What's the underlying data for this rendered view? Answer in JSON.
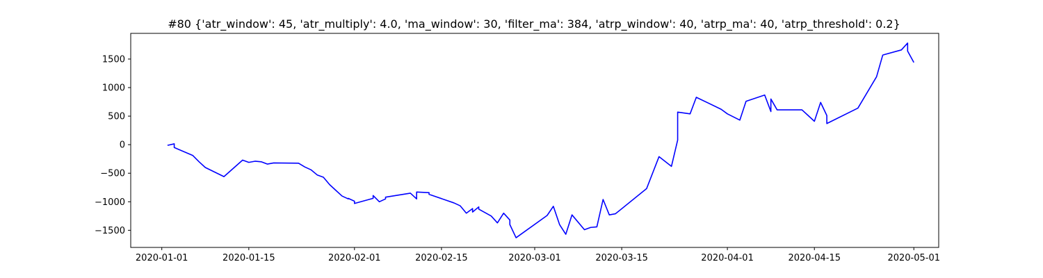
{
  "chart_data": {
    "type": "line",
    "title": "#80 {'atr_window': 45, 'atr_multiply': 4.0, 'ma_window': 30, 'filter_ma': 384, 'atrp_window': 40, 'atrp_ma': 40, 'atrp_threshold': 0.2}",
    "xlabel": "",
    "ylabel": "",
    "xlim": [
      "2019-12-27",
      "2020-05-05"
    ],
    "ylim": [
      -1800,
      1950
    ],
    "grid": false,
    "legend": "none",
    "x_ticks": [
      "2020-01-01",
      "2020-01-15",
      "2020-02-01",
      "2020-02-15",
      "2020-03-01",
      "2020-03-15",
      "2020-04-01",
      "2020-04-15",
      "2020-05-01"
    ],
    "y_ticks": [
      -1500,
      -1000,
      -500,
      0,
      500,
      1000,
      1500
    ],
    "line_color": "#0000ff",
    "series": [
      {
        "x": [
          "2020-01-02",
          "2020-01-02",
          "2020-01-03",
          "2020-01-03",
          "2020-01-06",
          "2020-01-07",
          "2020-01-08",
          "2020-01-11",
          "2020-01-14",
          "2020-01-15",
          "2020-01-16",
          "2020-01-17",
          "2020-01-18",
          "2020-01-19",
          "2020-01-23",
          "2020-01-24",
          "2020-01-25",
          "2020-01-26",
          "2020-01-27",
          "2020-01-28",
          "2020-01-29",
          "2020-01-30",
          "2020-01-31",
          "2020-01-31",
          "2020-02-01",
          "2020-02-01",
          "2020-02-04",
          "2020-02-04",
          "2020-02-05",
          "2020-02-06",
          "2020-02-06",
          "2020-02-10",
          "2020-02-11",
          "2020-02-11",
          "2020-02-13",
          "2020-02-13",
          "2020-02-17",
          "2020-02-18",
          "2020-02-19",
          "2020-02-20",
          "2020-02-20",
          "2020-02-21",
          "2020-02-21",
          "2020-02-23",
          "2020-02-24",
          "2020-02-25",
          "2020-02-26",
          "2020-02-26",
          "2020-02-27",
          "2020-03-03",
          "2020-03-04",
          "2020-03-05",
          "2020-03-06",
          "2020-03-07",
          "2020-03-09",
          "2020-03-10",
          "2020-03-11",
          "2020-03-12",
          "2020-03-13",
          "2020-03-14",
          "2020-03-19",
          "2020-03-21",
          "2020-03-23",
          "2020-03-24",
          "2020-03-24",
          "2020-03-26",
          "2020-03-27",
          "2020-03-31",
          "2020-04-01",
          "2020-04-03",
          "2020-04-04",
          "2020-04-07",
          "2020-04-08",
          "2020-04-08",
          "2020-04-09",
          "2020-04-13",
          "2020-04-14",
          "2020-04-15",
          "2020-04-16",
          "2020-04-17",
          "2020-04-17",
          "2020-04-22",
          "2020-04-25",
          "2020-04-26",
          "2020-04-29",
          "2020-04-30",
          "2020-04-30",
          "2020-05-01"
        ],
        "values": [
          0,
          -10,
          15,
          -50,
          -190,
          -300,
          -400,
          -560,
          -270,
          -310,
          -290,
          -300,
          -340,
          -320,
          -325,
          -390,
          -440,
          -530,
          -570,
          -700,
          -800,
          -900,
          -950,
          -940,
          -990,
          -1030,
          -940,
          -890,
          -1000,
          -950,
          -920,
          -850,
          -950,
          -830,
          -840,
          -870,
          -1020,
          -1070,
          -1200,
          -1120,
          -1180,
          -1090,
          -1130,
          -1250,
          -1370,
          -1200,
          -1320,
          -1400,
          -1630,
          -1240,
          -1080,
          -1400,
          -1570,
          -1230,
          -1490,
          -1450,
          -1440,
          -960,
          -1230,
          -1210,
          -770,
          -210,
          -380,
          80,
          570,
          540,
          830,
          620,
          540,
          430,
          760,
          870,
          580,
          800,
          610,
          610,
          510,
          410,
          740,
          510,
          370,
          640,
          1190,
          1570,
          1660,
          1780,
          1640,
          1440
        ]
      }
    ]
  }
}
